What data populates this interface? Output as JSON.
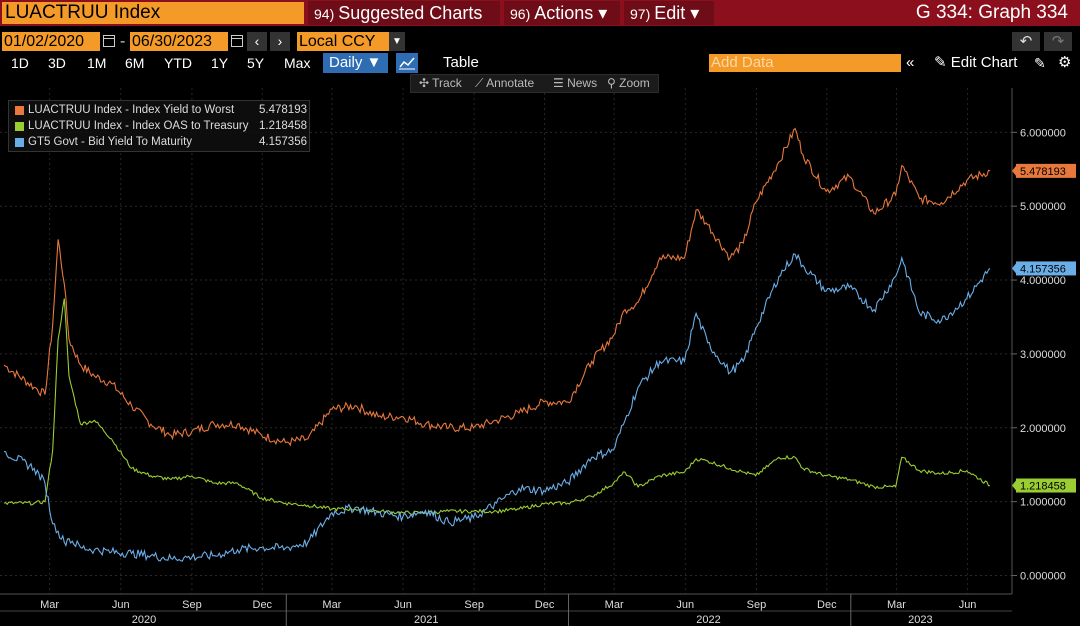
{
  "header": {
    "ticker": "LUACTRUU Index",
    "menus": [
      {
        "num": "94)",
        "label": "Suggested Charts"
      },
      {
        "num": "96)",
        "label": "Actions ▾"
      },
      {
        "num": "97)",
        "label": "Edit ▾"
      }
    ],
    "graph_title": "G 334: Graph 334"
  },
  "range": {
    "start_date": "01/02/2020",
    "separator": "-",
    "end_date": "06/30/2023",
    "prev": "‹",
    "next": "›",
    "currency": "Local CCY",
    "undo": "↶",
    "redo": "↷"
  },
  "periods": [
    "1D",
    "3D",
    "1M",
    "6M",
    "YTD",
    "1Y",
    "5Y",
    "Max"
  ],
  "frequency": "Daily ▼",
  "table_label": "Table",
  "add_data_placeholder": "Add Data",
  "collapse_label": "«",
  "edit_chart_label": "✎ Edit Chart",
  "edit_icon": "✎",
  "settings_icon": "⚙",
  "tools": {
    "track": "✣ Track",
    "annotate": "⟋ Annotate",
    "news": "☰ News",
    "zoom": "⚲ Zoom"
  },
  "colors": {
    "series1": "#e8783c",
    "series2": "#9acd32",
    "series3": "#6aaee8",
    "background": "#000000",
    "grid": "#2a2a2a"
  },
  "chart_data": {
    "type": "line",
    "ylim": [
      -0.25,
      6.6
    ],
    "y_ticks": [
      0,
      1,
      2,
      3,
      4,
      5,
      6
    ],
    "y_tick_labels": [
      "0.000000",
      "1.000000",
      "2.000000",
      "3.000000",
      "4.000000",
      "5.000000",
      "6.000000"
    ],
    "x_tick_labels": [
      "Mar",
      "Jun",
      "Sep",
      "Dec",
      "Mar",
      "Jun",
      "Sep",
      "Dec",
      "Mar",
      "Jun",
      "Sep",
      "Dec",
      "Mar",
      "Jun"
    ],
    "x_year_labels": [
      "2020",
      "2021",
      "2022",
      "2023"
    ],
    "grid": true,
    "legend_position": "top-left",
    "series": [
      {
        "name": "LUACTRUU Index - Index Yield to Worst",
        "last_value": "5.478193",
        "x": [
          "2020-01-02",
          "2020-02-10",
          "2020-02-24",
          "2020-03-05",
          "2020-03-12",
          "2020-03-20",
          "2020-03-26",
          "2020-04-10",
          "2020-04-28",
          "2020-05-20",
          "2020-06-15",
          "2020-07-10",
          "2020-08-05",
          "2020-09-01",
          "2020-09-30",
          "2020-10-30",
          "2020-11-30",
          "2020-12-31",
          "2021-01-29",
          "2021-03-01",
          "2021-03-31",
          "2021-04-30",
          "2021-06-01",
          "2021-06-30",
          "2021-07-30",
          "2021-08-31",
          "2021-09-30",
          "2021-10-29",
          "2021-11-30",
          "2021-12-31",
          "2022-01-31",
          "2022-02-28",
          "2022-03-15",
          "2022-04-01",
          "2022-04-29",
          "2022-05-31",
          "2022-06-15",
          "2022-06-30",
          "2022-07-29",
          "2022-08-15",
          "2022-08-31",
          "2022-09-30",
          "2022-10-21",
          "2022-10-31",
          "2022-11-30",
          "2022-12-30",
          "2023-01-31",
          "2023-02-28",
          "2023-03-08",
          "2023-03-31",
          "2023-04-28",
          "2023-05-31",
          "2023-06-30"
        ],
        "values": [
          2.85,
          2.55,
          2.45,
          3.4,
          4.55,
          3.95,
          3.2,
          2.85,
          2.7,
          2.6,
          2.3,
          2.05,
          1.9,
          1.95,
          2.05,
          2.05,
          1.9,
          1.8,
          1.85,
          2.25,
          2.3,
          2.15,
          2.15,
          2.05,
          2.0,
          2.0,
          2.1,
          2.2,
          2.35,
          2.35,
          2.9,
          3.25,
          3.6,
          3.7,
          4.3,
          4.3,
          4.95,
          4.75,
          4.3,
          4.5,
          5.05,
          5.6,
          6.05,
          5.7,
          5.2,
          5.4,
          4.9,
          5.15,
          5.55,
          5.1,
          5.05,
          5.35,
          5.478193
        ]
      },
      {
        "name": "LUACTRUU Index - Index OAS to Treasury",
        "last_value": "1.218458",
        "x": [
          "2020-01-02",
          "2020-02-10",
          "2020-02-24",
          "2020-03-05",
          "2020-03-12",
          "2020-03-20",
          "2020-03-26",
          "2020-04-10",
          "2020-04-28",
          "2020-05-20",
          "2020-06-15",
          "2020-07-10",
          "2020-08-05",
          "2020-09-01",
          "2020-09-30",
          "2020-10-30",
          "2020-11-30",
          "2020-12-31",
          "2021-01-29",
          "2021-03-01",
          "2021-03-31",
          "2021-04-30",
          "2021-06-01",
          "2021-06-30",
          "2021-07-30",
          "2021-08-31",
          "2021-09-30",
          "2021-10-29",
          "2021-11-30",
          "2021-12-31",
          "2022-01-31",
          "2022-02-28",
          "2022-03-15",
          "2022-04-01",
          "2022-04-29",
          "2022-05-31",
          "2022-06-15",
          "2022-06-30",
          "2022-07-29",
          "2022-08-15",
          "2022-08-31",
          "2022-09-30",
          "2022-10-21",
          "2022-10-31",
          "2022-11-30",
          "2022-12-30",
          "2023-01-31",
          "2023-02-28",
          "2023-03-08",
          "2023-03-31",
          "2023-04-28",
          "2023-05-31",
          "2023-06-30"
        ],
        "values": [
          0.98,
          0.98,
          1.0,
          1.7,
          3.2,
          3.75,
          2.7,
          2.05,
          2.1,
          1.85,
          1.45,
          1.35,
          1.3,
          1.35,
          1.25,
          1.25,
          1.05,
          0.98,
          0.95,
          0.9,
          0.9,
          0.87,
          0.85,
          0.85,
          0.87,
          0.87,
          0.87,
          0.9,
          0.97,
          0.98,
          1.07,
          1.25,
          1.4,
          1.2,
          1.35,
          1.4,
          1.58,
          1.55,
          1.45,
          1.4,
          1.35,
          1.6,
          1.6,
          1.45,
          1.35,
          1.3,
          1.2,
          1.2,
          1.6,
          1.42,
          1.38,
          1.42,
          1.218458
        ]
      },
      {
        "name": "GT5 Govt - Bid Yield To Maturity",
        "last_value": "4.157356",
        "x": [
          "2020-01-02",
          "2020-02-10",
          "2020-02-24",
          "2020-03-05",
          "2020-03-12",
          "2020-03-20",
          "2020-03-26",
          "2020-04-10",
          "2020-04-28",
          "2020-05-20",
          "2020-06-15",
          "2020-07-10",
          "2020-08-05",
          "2020-09-01",
          "2020-09-30",
          "2020-10-30",
          "2020-11-30",
          "2020-12-31",
          "2021-01-29",
          "2021-03-01",
          "2021-03-31",
          "2021-04-30",
          "2021-06-01",
          "2021-06-30",
          "2021-07-30",
          "2021-08-31",
          "2021-09-30",
          "2021-10-29",
          "2021-11-30",
          "2021-12-31",
          "2022-01-31",
          "2022-02-28",
          "2022-03-15",
          "2022-04-01",
          "2022-04-29",
          "2022-05-31",
          "2022-06-15",
          "2022-06-30",
          "2022-07-29",
          "2022-08-15",
          "2022-08-31",
          "2022-09-30",
          "2022-10-21",
          "2022-10-31",
          "2022-11-30",
          "2022-12-30",
          "2023-01-31",
          "2023-02-28",
          "2023-03-08",
          "2023-03-31",
          "2023-04-28",
          "2023-05-31",
          "2023-06-30"
        ],
        "values": [
          1.68,
          1.45,
          1.25,
          0.7,
          0.6,
          0.45,
          0.5,
          0.38,
          0.35,
          0.32,
          0.3,
          0.27,
          0.23,
          0.25,
          0.27,
          0.35,
          0.38,
          0.37,
          0.45,
          0.85,
          0.92,
          0.85,
          0.8,
          0.88,
          0.72,
          0.78,
          0.98,
          1.18,
          1.15,
          1.26,
          1.6,
          1.7,
          2.1,
          2.55,
          2.9,
          2.9,
          3.55,
          3.15,
          2.75,
          2.9,
          3.35,
          4.05,
          4.35,
          4.2,
          3.85,
          3.9,
          3.6,
          4.05,
          4.3,
          3.55,
          3.45,
          3.75,
          4.157356
        ]
      }
    ]
  }
}
